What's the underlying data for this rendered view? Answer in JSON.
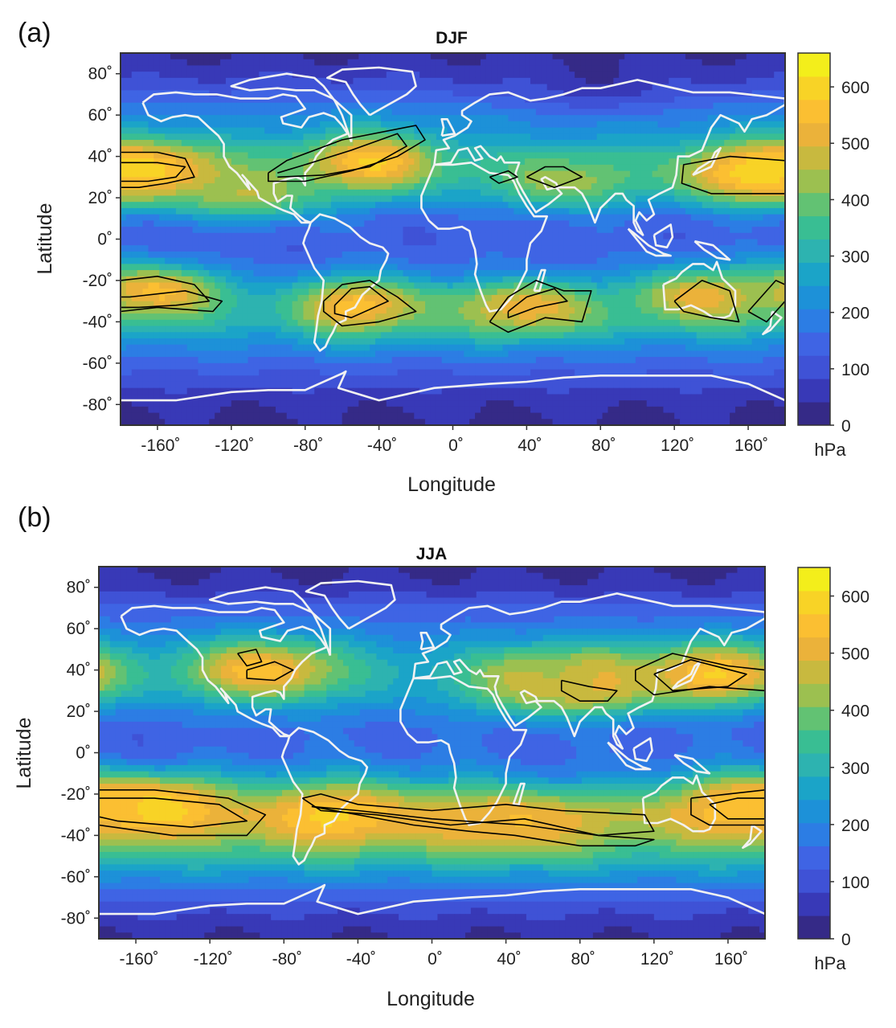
{
  "colors": {
    "scale": [
      "#352a87",
      "#3839b7",
      "#3f52d6",
      "#3f64e4",
      "#2c7de4",
      "#1d91d8",
      "#1ba4c8",
      "#2db3b0",
      "#39be93",
      "#62c273",
      "#9cc050",
      "#c8b93f",
      "#ebb23a",
      "#fbbf32",
      "#f8d326",
      "#f3ee1b"
    ],
    "coastline": "#f2f2f2",
    "contour": "#000000"
  },
  "chart_data": [
    {
      "type": "heatmap",
      "panel_label": "(a)",
      "title": "DJF",
      "xlabel": "Longitude",
      "ylabel": "Latitude",
      "xlim": [
        -180,
        180
      ],
      "ylim": [
        -90,
        90
      ],
      "xticks": [
        -160,
        -120,
        -80,
        -40,
        0,
        40,
        80,
        120,
        160
      ],
      "xtick_labels": [
        "-160˚",
        "-120˚",
        "-80˚",
        "-40˚",
        "0˚",
        "40˚",
        "80˚",
        "120˚",
        "160˚"
      ],
      "yticks": [
        80,
        60,
        40,
        20,
        0,
        -20,
        -40,
        -60,
        -80
      ],
      "ytick_labels": [
        "80˚",
        "60˚",
        "40˚",
        "20˚",
        "0˚",
        "-20˚",
        "-40˚",
        "-60˚",
        "-80˚"
      ],
      "colorbar": {
        "min": 0,
        "max": 660,
        "ticks": [
          0,
          100,
          200,
          300,
          400,
          500,
          600
        ],
        "unit": "hPa"
      },
      "base_by_latitude": [
        [
          -90,
          30
        ],
        [
          -80,
          50
        ],
        [
          -70,
          90
        ],
        [
          -60,
          150
        ],
        [
          -50,
          215
        ],
        [
          -40,
          270
        ],
        [
          -30,
          230
        ],
        [
          -20,
          160
        ],
        [
          -10,
          140
        ],
        [
          0,
          130
        ],
        [
          10,
          140
        ],
        [
          20,
          220
        ],
        [
          30,
          280
        ],
        [
          40,
          270
        ],
        [
          50,
          230
        ],
        [
          60,
          200
        ],
        [
          70,
          130
        ],
        [
          80,
          70
        ],
        [
          90,
          40
        ]
      ],
      "maxima": [
        {
          "lon": -160,
          "lat": 33,
          "value": 600
        },
        {
          "lon": -45,
          "lat": 37,
          "value": 580
        },
        {
          "lon": 160,
          "lat": 32,
          "value": 600
        },
        {
          "lon": -160,
          "lat": -25,
          "value": 560
        },
        {
          "lon": -50,
          "lat": -32,
          "value": 560
        },
        {
          "lon": 40,
          "lat": -33,
          "value": 540
        },
        {
          "lon": 133,
          "lat": -28,
          "value": 520
        },
        {
          "lon": 60,
          "lat": 28,
          "value": 450
        },
        {
          "lon": -112,
          "lat": 20,
          "value": 480
        }
      ],
      "minima": [
        {
          "lon": 80,
          "lat": 75,
          "value": 20
        },
        {
          "lon": 40,
          "lat": 0,
          "value": 150
        },
        {
          "lon": -120,
          "lat": 0,
          "value": 110
        }
      ]
    },
    {
      "type": "heatmap",
      "panel_label": "(b)",
      "title": "JJA",
      "xlabel": "Longitude",
      "ylabel": "Latitude",
      "xlim": [
        -180,
        180
      ],
      "ylim": [
        -90,
        90
      ],
      "xticks": [
        -160,
        -120,
        -80,
        -40,
        0,
        40,
        80,
        120,
        160
      ],
      "xtick_labels": [
        "-160˚",
        "-120˚",
        "-80˚",
        "-40˚",
        "0˚",
        "40˚",
        "80˚",
        "120˚",
        "160˚"
      ],
      "yticks": [
        80,
        60,
        40,
        20,
        0,
        -20,
        -40,
        -60,
        -80
      ],
      "ytick_labels": [
        "80˚",
        "60˚",
        "40˚",
        "20˚",
        "0˚",
        "-20˚",
        "-40˚",
        "-60˚",
        "-80˚"
      ],
      "colorbar": {
        "min": 0,
        "max": 650,
        "ticks": [
          0,
          100,
          200,
          300,
          400,
          500,
          600
        ],
        "unit": "hPa"
      },
      "base_by_latitude": [
        [
          -90,
          40
        ],
        [
          -80,
          70
        ],
        [
          -70,
          130
        ],
        [
          -60,
          220
        ],
        [
          -50,
          330
        ],
        [
          -40,
          420
        ],
        [
          -30,
          460
        ],
        [
          -20,
          330
        ],
        [
          -10,
          220
        ],
        [
          0,
          160
        ],
        [
          10,
          150
        ],
        [
          20,
          200
        ],
        [
          30,
          260
        ],
        [
          40,
          280
        ],
        [
          50,
          240
        ],
        [
          60,
          180
        ],
        [
          70,
          130
        ],
        [
          80,
          60
        ],
        [
          90,
          30
        ]
      ],
      "maxima": [
        {
          "lon": -150,
          "lat": -25,
          "value": 600
        },
        {
          "lon": -50,
          "lat": -30,
          "value": 580
        },
        {
          "lon": 40,
          "lat": -34,
          "value": 540
        },
        {
          "lon": 150,
          "lat": 38,
          "value": 580
        },
        {
          "lon": -90,
          "lat": 40,
          "value": 560
        },
        {
          "lon": 80,
          "lat": 33,
          "value": 540
        },
        {
          "lon": 170,
          "lat": -25,
          "value": 560
        },
        {
          "lon": 60,
          "lat": 35,
          "value": 460
        }
      ],
      "minima": [
        {
          "lon": -150,
          "lat": 5,
          "value": 120
        },
        {
          "lon": 80,
          "lat": 0,
          "value": 140
        }
      ]
    }
  ]
}
